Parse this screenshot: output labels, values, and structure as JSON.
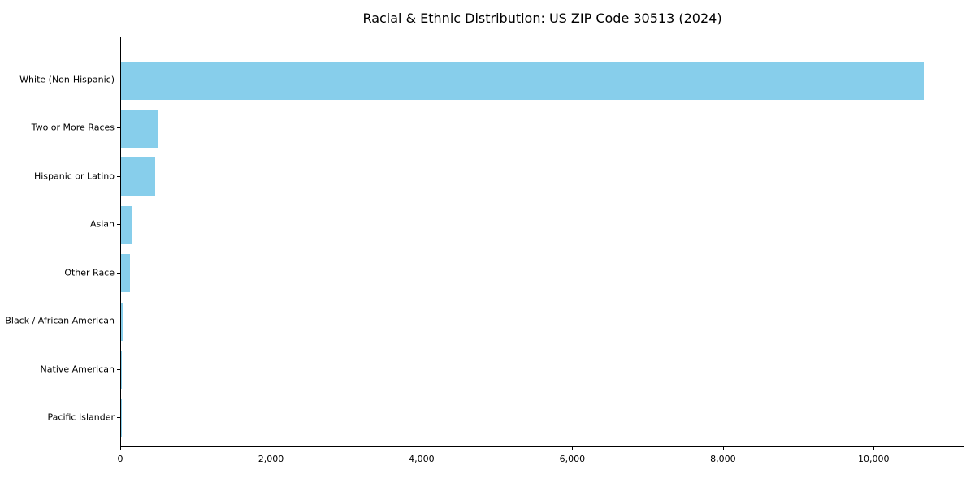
{
  "chart_data": {
    "type": "bar",
    "orientation": "horizontal",
    "title": "Racial & Ethnic Distribution: US ZIP Code 30513 (2024)",
    "categories": [
      "White (Non-Hispanic)",
      "Two or More Races",
      "Hispanic or Latino",
      "Asian",
      "Other Race",
      "Black / African American",
      "Native American",
      "Pacific Islander"
    ],
    "values": [
      10650,
      480,
      455,
      140,
      120,
      35,
      10,
      5
    ],
    "xlabel": "",
    "ylabel": "",
    "xlim": [
      0,
      11183
    ],
    "xticks": [
      0,
      2000,
      4000,
      6000,
      8000,
      10000
    ],
    "xtick_labels": [
      "0",
      "2,000",
      "4,000",
      "6,000",
      "8,000",
      "10,000"
    ],
    "bar_color": "#87CEEB",
    "frame_color": "#000000",
    "background": "#ffffff",
    "grid": false,
    "legend": null
  }
}
